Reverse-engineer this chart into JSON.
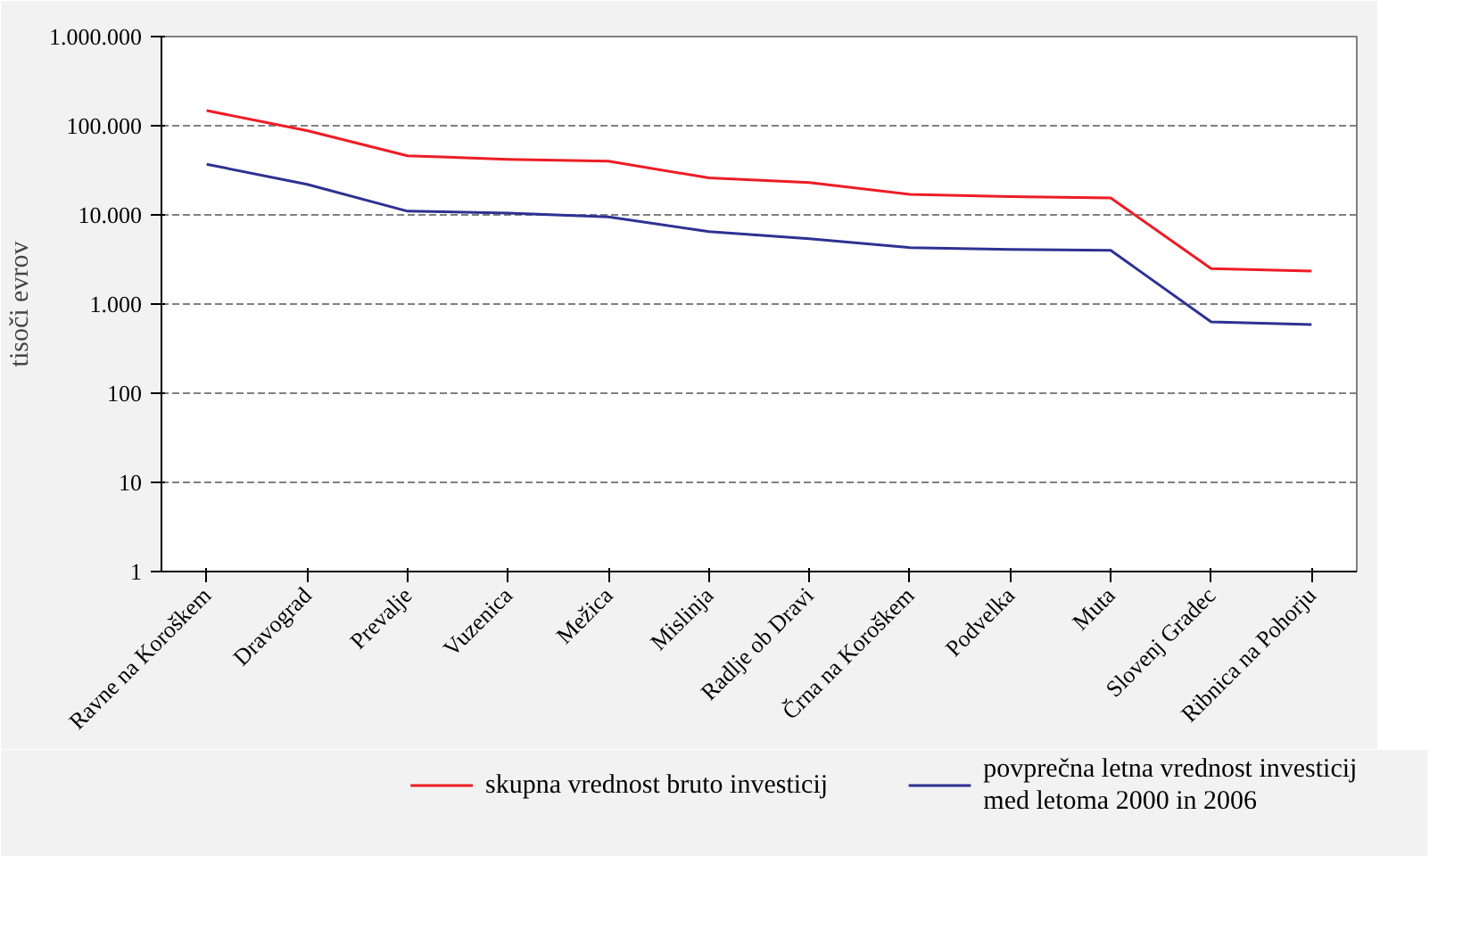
{
  "chart_data": {
    "type": "line",
    "ylabel": "tisoči evrov",
    "log": "y",
    "categories": [
      "Ravne na Koroškem",
      "Dravograd",
      "Prevalje",
      "Vuzenica",
      "Mežica",
      "Mislinja",
      "Radlje ob Dravi",
      "Črna na Koroškem",
      "Podvelka",
      "Muta",
      "Slovenj Gradec",
      "Ribnica na Pohorju"
    ],
    "series": [
      {
        "name": "skupna vrednost bruto investicij",
        "color": "#ee1c25",
        "values": [
          148000,
          88000,
          46000,
          42000,
          40000,
          26000,
          23000,
          17000,
          16000,
          15500,
          2500,
          2350
        ]
      },
      {
        "name": "povprečna letna vrednost investicij\nmed letoma 2000 in 2006",
        "color": "#2e3192",
        "values": [
          37000,
          22000,
          11000,
          10500,
          9500,
          6500,
          5400,
          4300,
          4100,
          4000,
          630,
          590
        ]
      }
    ],
    "ylim": [
      1,
      1000000
    ],
    "yticks": [
      1,
      10,
      100,
      {
        "value": 1000,
        "label": "1.000"
      },
      {
        "value": 10000,
        "label": "10.000"
      },
      {
        "value": 100000,
        "label": "100.000"
      },
      {
        "value": 1000000,
        "label": "1.000.000"
      }
    ],
    "grid": "y",
    "legend": "bottom",
    "marker": "none",
    "line_style": "solid"
  }
}
